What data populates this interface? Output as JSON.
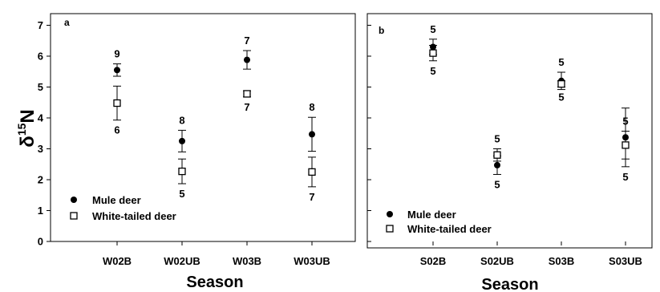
{
  "chart_data": [
    {
      "panel": "a",
      "type": "scatter",
      "error_bars": true,
      "categories": [
        "W02B",
        "W02UB",
        "W03B",
        "W03UB"
      ],
      "xlabel": "Season",
      "ylabel": "δ15N",
      "ylim": [
        0,
        7
      ],
      "yticks": [
        0,
        1,
        2,
        3,
        4,
        5,
        6,
        7
      ],
      "legend": {
        "position": "bottom-left",
        "entries": [
          "Mule deer",
          "White-tailed deer"
        ]
      },
      "series": [
        {
          "name": "Mule deer",
          "marker": "filled-circle",
          "values": [
            5.55,
            3.25,
            5.88,
            3.47
          ],
          "error": [
            0.2,
            0.35,
            0.3,
            0.55
          ],
          "n_labels": [
            "9",
            "8",
            "7",
            "8"
          ]
        },
        {
          "name": "White-tailed deer",
          "marker": "open-square",
          "values": [
            4.48,
            2.27,
            4.78,
            2.25
          ],
          "error": [
            0.55,
            0.4,
            0.1,
            0.48
          ],
          "n_labels": [
            "6",
            "5",
            "7",
            "7"
          ]
        }
      ]
    },
    {
      "panel": "b",
      "type": "scatter",
      "error_bars": true,
      "categories": [
        "S02B",
        "S02UB",
        "S03B",
        "S03UB"
      ],
      "xlabel": "Season",
      "ylim": [
        0,
        7
      ],
      "legend": {
        "position": "bottom-left",
        "entries": [
          "Mule deer",
          "White-tailed deer"
        ]
      },
      "series": [
        {
          "name": "Mule deer",
          "marker": "filled-circle",
          "values": [
            6.3,
            2.47,
            5.2,
            3.37
          ],
          "error": [
            0.25,
            0.3,
            0.28,
            0.95
          ],
          "n_labels": [
            "5",
            "5",
            "5",
            "5"
          ]
        },
        {
          "name": "White-tailed deer",
          "marker": "open-square",
          "values": [
            6.1,
            2.8,
            5.1,
            3.12
          ],
          "error": [
            0.25,
            0.2,
            0.1,
            0.45
          ],
          "n_labels": [
            "5",
            "5",
            "5",
            "5"
          ]
        }
      ]
    }
  ]
}
